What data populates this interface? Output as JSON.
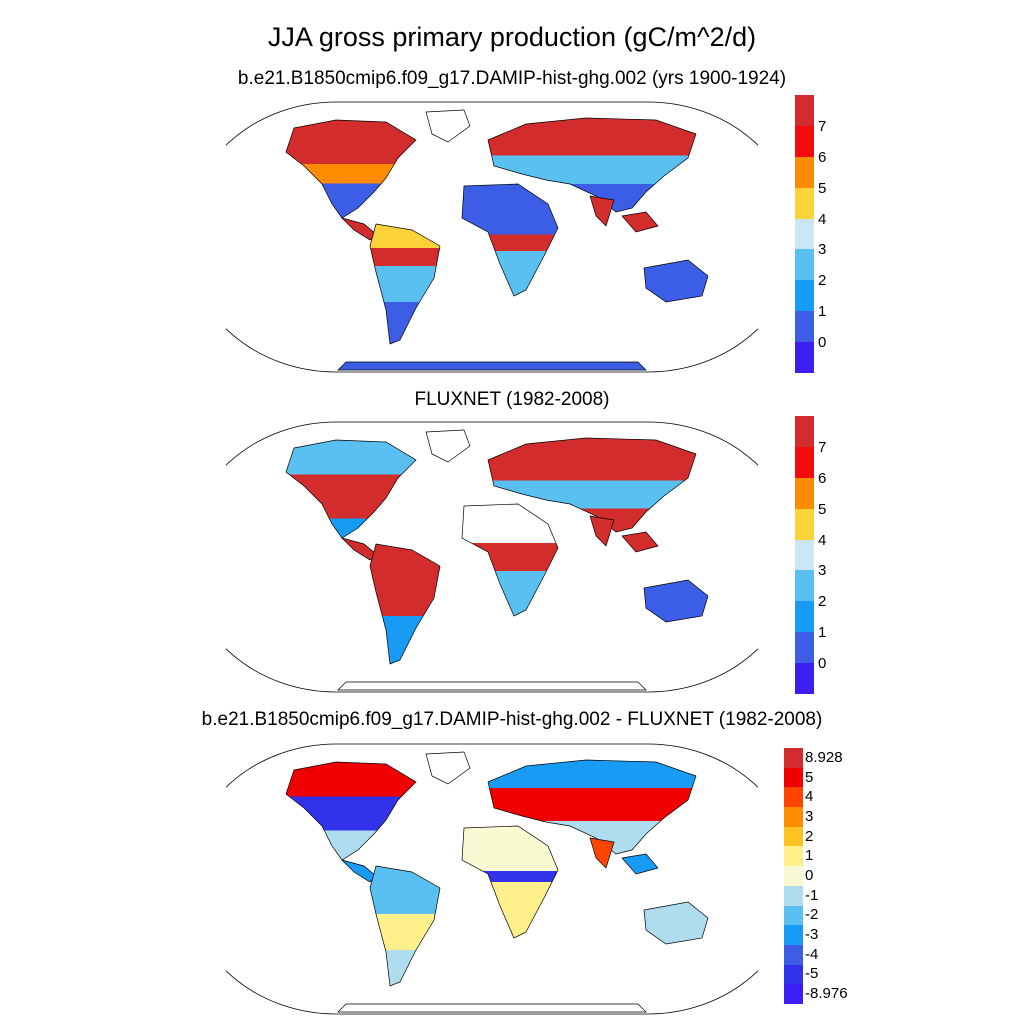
{
  "title": "JJA gross primary production (gC/m^2/d)",
  "panels": [
    {
      "title": "b.e21.B1850cmip6.f09_g17.DAMIP-hist-ghg.002 (yrs 1900-1924)",
      "colorbar": {
        "labels": [
          "7",
          "6",
          "5",
          "4",
          "3",
          "2",
          "1",
          "0"
        ],
        "colors": [
          "#d22c2c",
          "#f40c0c",
          "#ff8c00",
          "#fdd23a",
          "#cbe6f5",
          "#5ac0f2",
          "#189bf5",
          "#3c5ee6",
          "#3c1ef5"
        ]
      }
    },
    {
      "title": "FLUXNET (1982-2008)",
      "colorbar": {
        "labels": [
          "7",
          "6",
          "5",
          "4",
          "3",
          "2",
          "1",
          "0"
        ],
        "colors": [
          "#d22c2c",
          "#f40c0c",
          "#ff8c00",
          "#fdd23a",
          "#cbe6f5",
          "#5ac0f2",
          "#189bf5",
          "#3c5ee6",
          "#3c1ef5"
        ]
      }
    },
    {
      "title": "b.e21.B1850cmip6.f09_g17.DAMIP-hist-ghg.002 - FLUXNET (1982-2008)",
      "colorbar": {
        "labels": [
          "8.928",
          "5",
          "4",
          "3",
          "2",
          "1",
          "0",
          "-1",
          "-2",
          "-3",
          "-4",
          "-5",
          "-8.976"
        ],
        "colors": [
          "#d22c2c",
          "#f00000",
          "#ff4500",
          "#ff8c00",
          "#ffc21e",
          "#fff08c",
          "#fafad2",
          "#b0dcf0",
          "#5ac0f2",
          "#189bf5",
          "#3c5ee6",
          "#3232eb",
          "#3c1ef5"
        ]
      }
    }
  ],
  "colors": {
    "coast": "#000000",
    "ocean": "#ffffff",
    "land_high": "#d22c2c",
    "land_mid": "#fdd23a",
    "land_low": "#3c5ee6",
    "diff_pos": "#f00000",
    "diff_zero": "#fafad2",
    "diff_neg": "#3232eb"
  }
}
